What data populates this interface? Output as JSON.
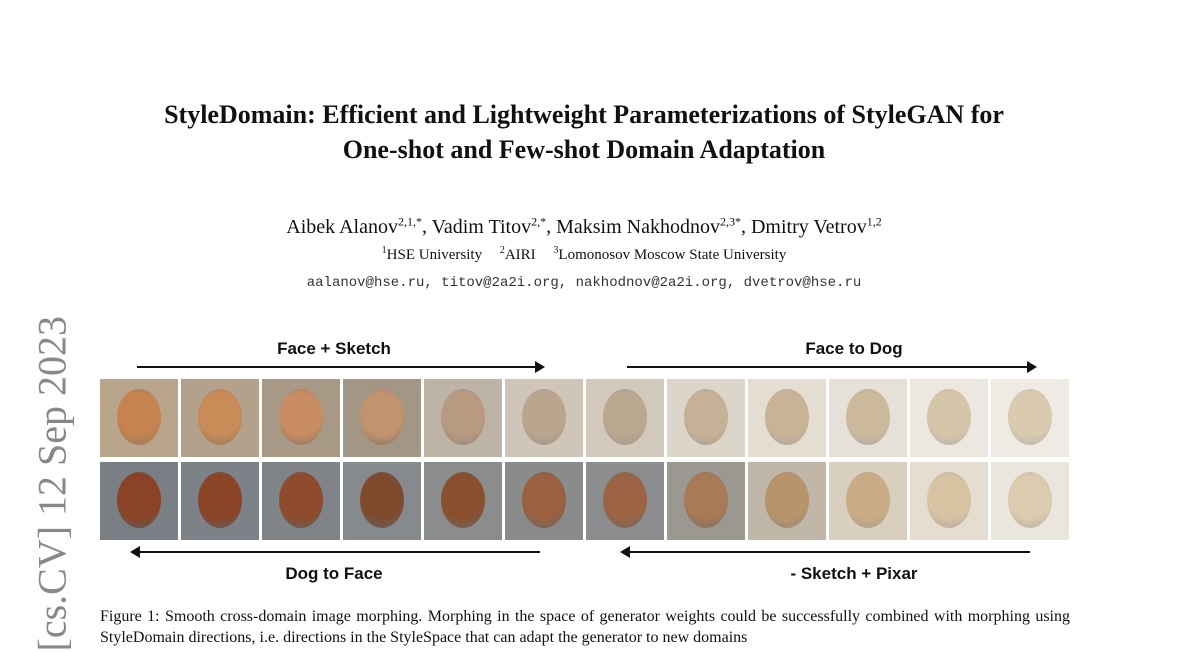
{
  "stamp": "[cs.CV]  12 Sep 2023",
  "title_line1": "StyleDomain: Efficient and Lightweight Parameterizations of StyleGAN for",
  "title_line2": "One-shot and Few-shot Domain Adaptation",
  "authors": [
    {
      "name": "Aibek Alanov",
      "sup": "2,1,*"
    },
    {
      "name": "Vadim Titov",
      "sup": "2,*"
    },
    {
      "name": "Maksim Nakhodnov",
      "sup": "2,3*"
    },
    {
      "name": "Dmitry Vetrov",
      "sup": "1,2"
    }
  ],
  "affiliations": [
    {
      "sup": "1",
      "name": "HSE University"
    },
    {
      "sup": "2",
      "name": "AIRI"
    },
    {
      "sup": "3",
      "name": "Lomonosov Moscow State University"
    }
  ],
  "emails": "aalanov@hse.ru, titov@2a2i.org, nakhodnov@2a2i.org, dvetrov@hse.ru",
  "figure": {
    "labels": {
      "top_left": "Face + Sketch",
      "top_right": "Face to Dog",
      "bottom_left": "Dog to Face",
      "bottom_right": "- Sketch + Pixar"
    },
    "caption": "Figure 1: Smooth cross-domain image morphing. Morphing in the space of generator weights could be successfully combined with morphing using StyleDomain directions, i.e. directions in the StyleSpace that can adapt the generator to new domains"
  }
}
